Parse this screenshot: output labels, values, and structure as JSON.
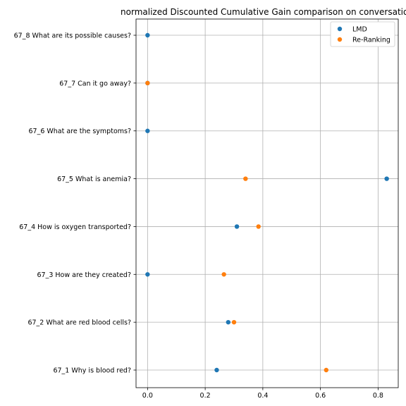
{
  "chart_data": {
    "type": "scatter",
    "title": "normalized Discounted Cumulative Gain comparison on conversation",
    "xlabel": "",
    "ylabel": "",
    "xlim": [
      -0.04,
      0.87
    ],
    "xticks": [
      "0.0",
      "0.2",
      "0.4",
      "0.6",
      "0.8"
    ],
    "xtick_values": [
      0.0,
      0.2,
      0.4,
      0.6,
      0.8
    ],
    "grid": true,
    "legend_position": "top-right",
    "categories": [
      "67_1 Why is blood red?",
      "67_2 What are red blood cells?",
      "67_3 How are they created?",
      "67_4 How is oxygen transported?",
      "67_5 What is anemia?",
      "67_6 What are the symptoms?",
      "67_7 Can it go away?",
      "67_8 What are its possible causes?"
    ],
    "series": [
      {
        "name": "LMD",
        "color": "#1f77b4",
        "values": [
          0.24,
          0.28,
          0.0,
          0.31,
          0.83,
          0.0,
          0.0,
          0.0
        ]
      },
      {
        "name": "Re-Ranking",
        "color": "#ff7f0e",
        "values": [
          0.62,
          0.3,
          0.265,
          0.385,
          0.34,
          null,
          0.0,
          null
        ]
      }
    ]
  }
}
